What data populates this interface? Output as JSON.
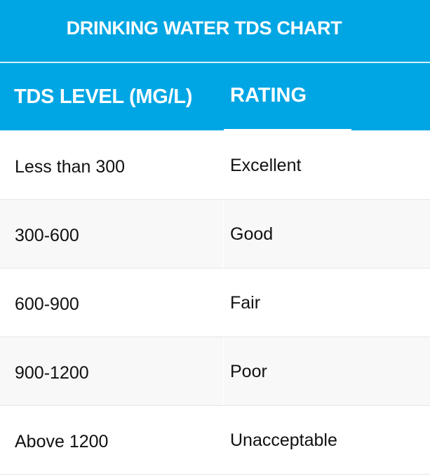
{
  "chart_data": {
    "type": "table",
    "title": "DRINKING WATER TDS CHART",
    "columns": [
      "TDS LEVEL (MG/L)",
      "RATING"
    ],
    "rows": [
      [
        "Less than 300",
        "Excellent"
      ],
      [
        "300-600",
        "Good"
      ],
      [
        "600-900",
        "Fair"
      ],
      [
        "900-1200",
        "Poor"
      ],
      [
        "Above 1200",
        "Unacceptable"
      ]
    ]
  },
  "colors": {
    "header_background": "#00a6e4",
    "header_text": "#ffffff",
    "row_alt_background": "#f8f8f8",
    "body_text": "#111111"
  }
}
